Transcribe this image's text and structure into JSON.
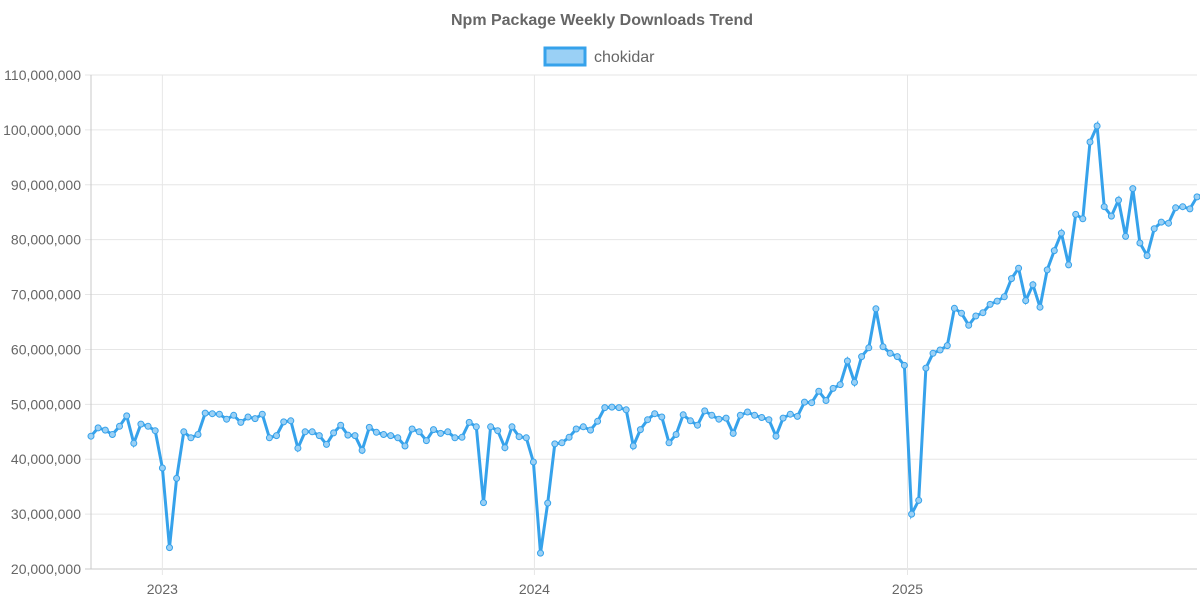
{
  "chart_data": {
    "type": "line",
    "title": "Npm Package Weekly Downloads Trend",
    "legend_position": "top",
    "grid": true,
    "xlabel": "",
    "ylabel": "",
    "x_ticks": [
      "2023",
      "2024",
      "2025"
    ],
    "x_tick_dates": [
      "2023-01-01",
      "2024-01-01",
      "2025-01-01"
    ],
    "xlim": [
      "2022-10-23",
      "2025-10-12"
    ],
    "ylim": [
      20000000,
      110000000
    ],
    "y_ticks": [
      "20,000,000",
      "30,000,000",
      "40,000,000",
      "50,000,000",
      "60,000,000",
      "70,000,000",
      "80,000,000",
      "90,000,000",
      "100,000,000",
      "110,000,000"
    ],
    "y_tick_values": [
      20000000,
      30000000,
      40000000,
      50000000,
      60000000,
      70000000,
      80000000,
      90000000,
      100000000,
      110000000
    ],
    "series": [
      {
        "name": "chokidar",
        "color": "#36a2eb",
        "fill": "#9ad0f5",
        "start_date": "2022-10-23",
        "interval_days": 7,
        "values": [
          44200000,
          45700000,
          45300000,
          44500000,
          46000000,
          47900000,
          42900000,
          46400000,
          46000000,
          45200000,
          38400000,
          23900000,
          36500000,
          45000000,
          43900000,
          44500000,
          48400000,
          48300000,
          48200000,
          47300000,
          48000000,
          46700000,
          47700000,
          47400000,
          48200000,
          43900000,
          44300000,
          46800000,
          47000000,
          42000000,
          45000000,
          45000000,
          44300000,
          42700000,
          44800000,
          46200000,
          44400000,
          44300000,
          41600000,
          45800000,
          44900000,
          44500000,
          44300000,
          43900000,
          42400000,
          45500000,
          45000000,
          43400000,
          45400000,
          44700000,
          45000000,
          43900000,
          44000000,
          46700000,
          45900000,
          32100000,
          45900000,
          45200000,
          42100000,
          45900000,
          44100000,
          43900000,
          39500000,
          22900000,
          32000000,
          42800000,
          43000000,
          44000000,
          45500000,
          45900000,
          45300000,
          46900000,
          49400000,
          49500000,
          49400000,
          49000000,
          42400000,
          45400000,
          47200000,
          48300000,
          47700000,
          43000000,
          44500000,
          48100000,
          47000000,
          46200000,
          48800000,
          48000000,
          47300000,
          47500000,
          44700000,
          48000000,
          48600000,
          48000000,
          47600000,
          47200000,
          44200000,
          47500000,
          48200000,
          47800000,
          50400000,
          50300000,
          52400000,
          50700000,
          52900000,
          53600000,
          57900000,
          54000000,
          58700000,
          60300000,
          67400000,
          60500000,
          59300000,
          58700000,
          57100000,
          30000000,
          32500000,
          56600000,
          59300000,
          59900000,
          60700000,
          67500000,
          66600000,
          64400000,
          66100000,
          66700000,
          68200000,
          68800000,
          69600000,
          72900000,
          74800000,
          68900000,
          71800000,
          67700000,
          74500000,
          78000000,
          81200000,
          75400000,
          84600000,
          83800000,
          97800000,
          100700000,
          86000000,
          84300000,
          87200000,
          80600000,
          89300000,
          79400000,
          77100000,
          82000000,
          83200000,
          83000000,
          85800000,
          86000000,
          85600000,
          87800000,
          88300000
        ]
      }
    ]
  }
}
